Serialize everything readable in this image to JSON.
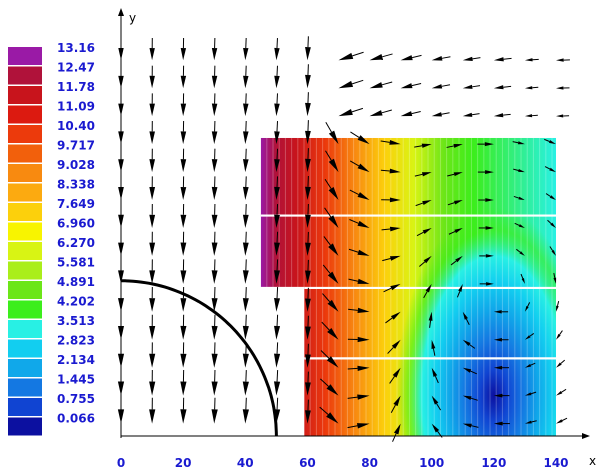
{
  "chart_data": {
    "type": "heatmap",
    "title": "",
    "xlabel": "x",
    "ylabel": "y",
    "xlim": [
      0,
      140
    ],
    "ylim": [
      0,
      130
    ],
    "x_ticks": [
      "0",
      "20",
      "40",
      "60",
      "80",
      "100",
      "120",
      "140"
    ],
    "colorbar": {
      "levels": [
        "13.16",
        "12.47",
        "11.78",
        "11.09",
        "10.40",
        "9.717",
        "9.028",
        "8.338",
        "7.649",
        "6.960",
        "6.270",
        "5.581",
        "4.891",
        "4.202",
        "3.513",
        "2.823",
        "2.134",
        "1.445",
        "0.755",
        "0.066"
      ],
      "colors": [
        "#9a1aa6",
        "#b0123a",
        "#c8141c",
        "#dc1a10",
        "#ec3a0c",
        "#f2600c",
        "#f88a10",
        "#fcaa10",
        "#fcd00c",
        "#f8f400",
        "#d8f414",
        "#aaee1a",
        "#6ce618",
        "#3cee1c",
        "#28f0e4",
        "#12cef0",
        "#10a8ea",
        "#1478e2",
        "#1044d2",
        "#0c10a0"
      ]
    },
    "field_region": {
      "x": [
        45,
        140
      ],
      "y": [
        0,
        96
      ],
      "missing_corner": {
        "x": [
          45,
          59
        ],
        "y": [
          0,
          48
        ]
      }
    },
    "field_peak": {
      "x": 120,
      "y": 13,
      "value": 0.066
    },
    "arc": {
      "center": [
        0,
        0
      ],
      "radius": 50
    },
    "vector_grid": {
      "x_start": 0,
      "x_step": 10,
      "x_count": 15,
      "y_start": 4,
      "y_step": 9,
      "y_count": 14
    }
  }
}
